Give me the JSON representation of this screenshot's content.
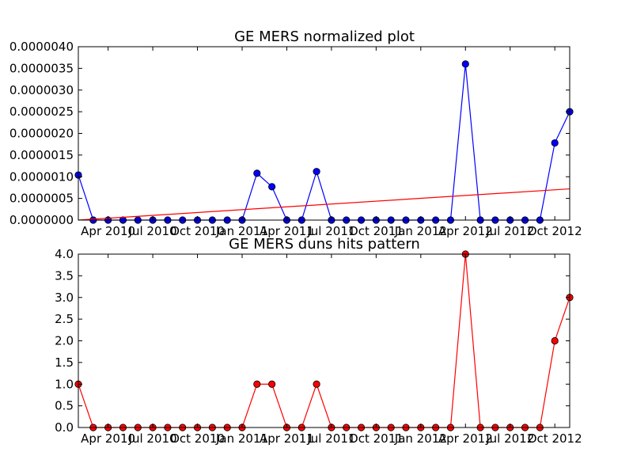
{
  "colors": {
    "figure_background": "#ffffff",
    "series_blue": "#0000ff",
    "series_red": "#ff0000",
    "axes_frame": "#000000"
  },
  "chart_data": [
    {
      "type": "line",
      "title": "GE MERS normalized plot",
      "xlabel": "",
      "ylabel": "",
      "grid": false,
      "legend": "none",
      "x_tick_labels": [
        "Apr 2010",
        "Jul 2010",
        "Oct 2010",
        "Jan 2011",
        "Apr 2011",
        "Jul 2011",
        "Oct 2011",
        "Jan 2012",
        "Apr 2012",
        "Jul 2012",
        "Oct 2012"
      ],
      "x_tick_months": [
        2,
        5,
        8,
        11,
        14,
        17,
        20,
        23,
        26,
        29,
        32
      ],
      "x_month_labels": [
        "Feb 2010",
        "Mar 2010",
        "Apr 2010",
        "May 2010",
        "Jun 2010",
        "Jul 2010",
        "Aug 2010",
        "Sep 2010",
        "Oct 2010",
        "Nov 2010",
        "Dec 2010",
        "Jan 2011",
        "Feb 2011",
        "Mar 2011",
        "Apr 2011",
        "May 2011",
        "Jun 2011",
        "Jul 2011",
        "Aug 2011",
        "Sep 2011",
        "Oct 2011",
        "Nov 2011",
        "Dec 2011",
        "Jan 2012",
        "Feb 2012",
        "Mar 2012",
        "Apr 2012",
        "May 2012",
        "Jun 2012",
        "Jul 2012",
        "Aug 2012",
        "Sep 2012",
        "Oct 2012",
        "Nov 2012"
      ],
      "xlim": [
        "Feb 2010",
        "Nov 2012"
      ],
      "ylim": [
        0,
        4e-06
      ],
      "y_ticks": [
        0,
        5e-07,
        1e-06,
        1.5e-06,
        2e-06,
        2.5e-06,
        3e-06,
        3.5e-06,
        4e-06
      ],
      "y_tick_labels": [
        "0.0000000",
        "0.0000005",
        "0.0000010",
        "0.0000015",
        "0.0000020",
        "0.0000025",
        "0.0000030",
        "0.0000035",
        "0.0000040"
      ],
      "series": [
        {
          "style": "line+markers",
          "color": "#0000ff",
          "values": [
            1.04e-06,
            0,
            0,
            0,
            0,
            0,
            0,
            0,
            0,
            0,
            0,
            0,
            1.08e-06,
            7.7e-07,
            0,
            0,
            1.12e-06,
            0,
            0,
            0,
            0,
            0,
            0,
            0,
            0,
            0,
            3.6e-06,
            0,
            0,
            0,
            0,
            0,
            1.78e-06,
            2.5e-06
          ]
        },
        {
          "style": "trend-line",
          "color": "#ff0000",
          "values": [
            0.0,
            7.2e-07
          ]
        }
      ]
    },
    {
      "type": "line",
      "title": "GE MERS duns hits pattern",
      "xlabel": "",
      "ylabel": "",
      "grid": false,
      "legend": "none",
      "x_tick_labels": [
        "Apr 2010",
        "Jul 2010",
        "Oct 2010",
        "Jan 2011",
        "Apr 2011",
        "Jul 2011",
        "Oct 2011",
        "Jan 2012",
        "Apr 2012",
        "Jul 2012",
        "Oct 2012"
      ],
      "x_tick_months": [
        2,
        5,
        8,
        11,
        14,
        17,
        20,
        23,
        26,
        29,
        32
      ],
      "xlim": [
        "Feb 2010",
        "Nov 2012"
      ],
      "ylim": [
        0,
        4.0
      ],
      "y_ticks": [
        0,
        0.5,
        1,
        1.5,
        2,
        2.5,
        3,
        3.5,
        4
      ],
      "y_tick_labels": [
        "0.0",
        "0.5",
        "1.0",
        "1.5",
        "2.0",
        "2.5",
        "3.0",
        "3.5",
        "4.0"
      ],
      "series": [
        {
          "style": "line+markers",
          "color": "#ff0000",
          "values": [
            1,
            0,
            0,
            0,
            0,
            0,
            0,
            0,
            0,
            0,
            0,
            0,
            1,
            1,
            0,
            0,
            1,
            0,
            0,
            0,
            0,
            0,
            0,
            0,
            0,
            0,
            4,
            0,
            0,
            0,
            0,
            0,
            2,
            3
          ]
        }
      ]
    }
  ]
}
